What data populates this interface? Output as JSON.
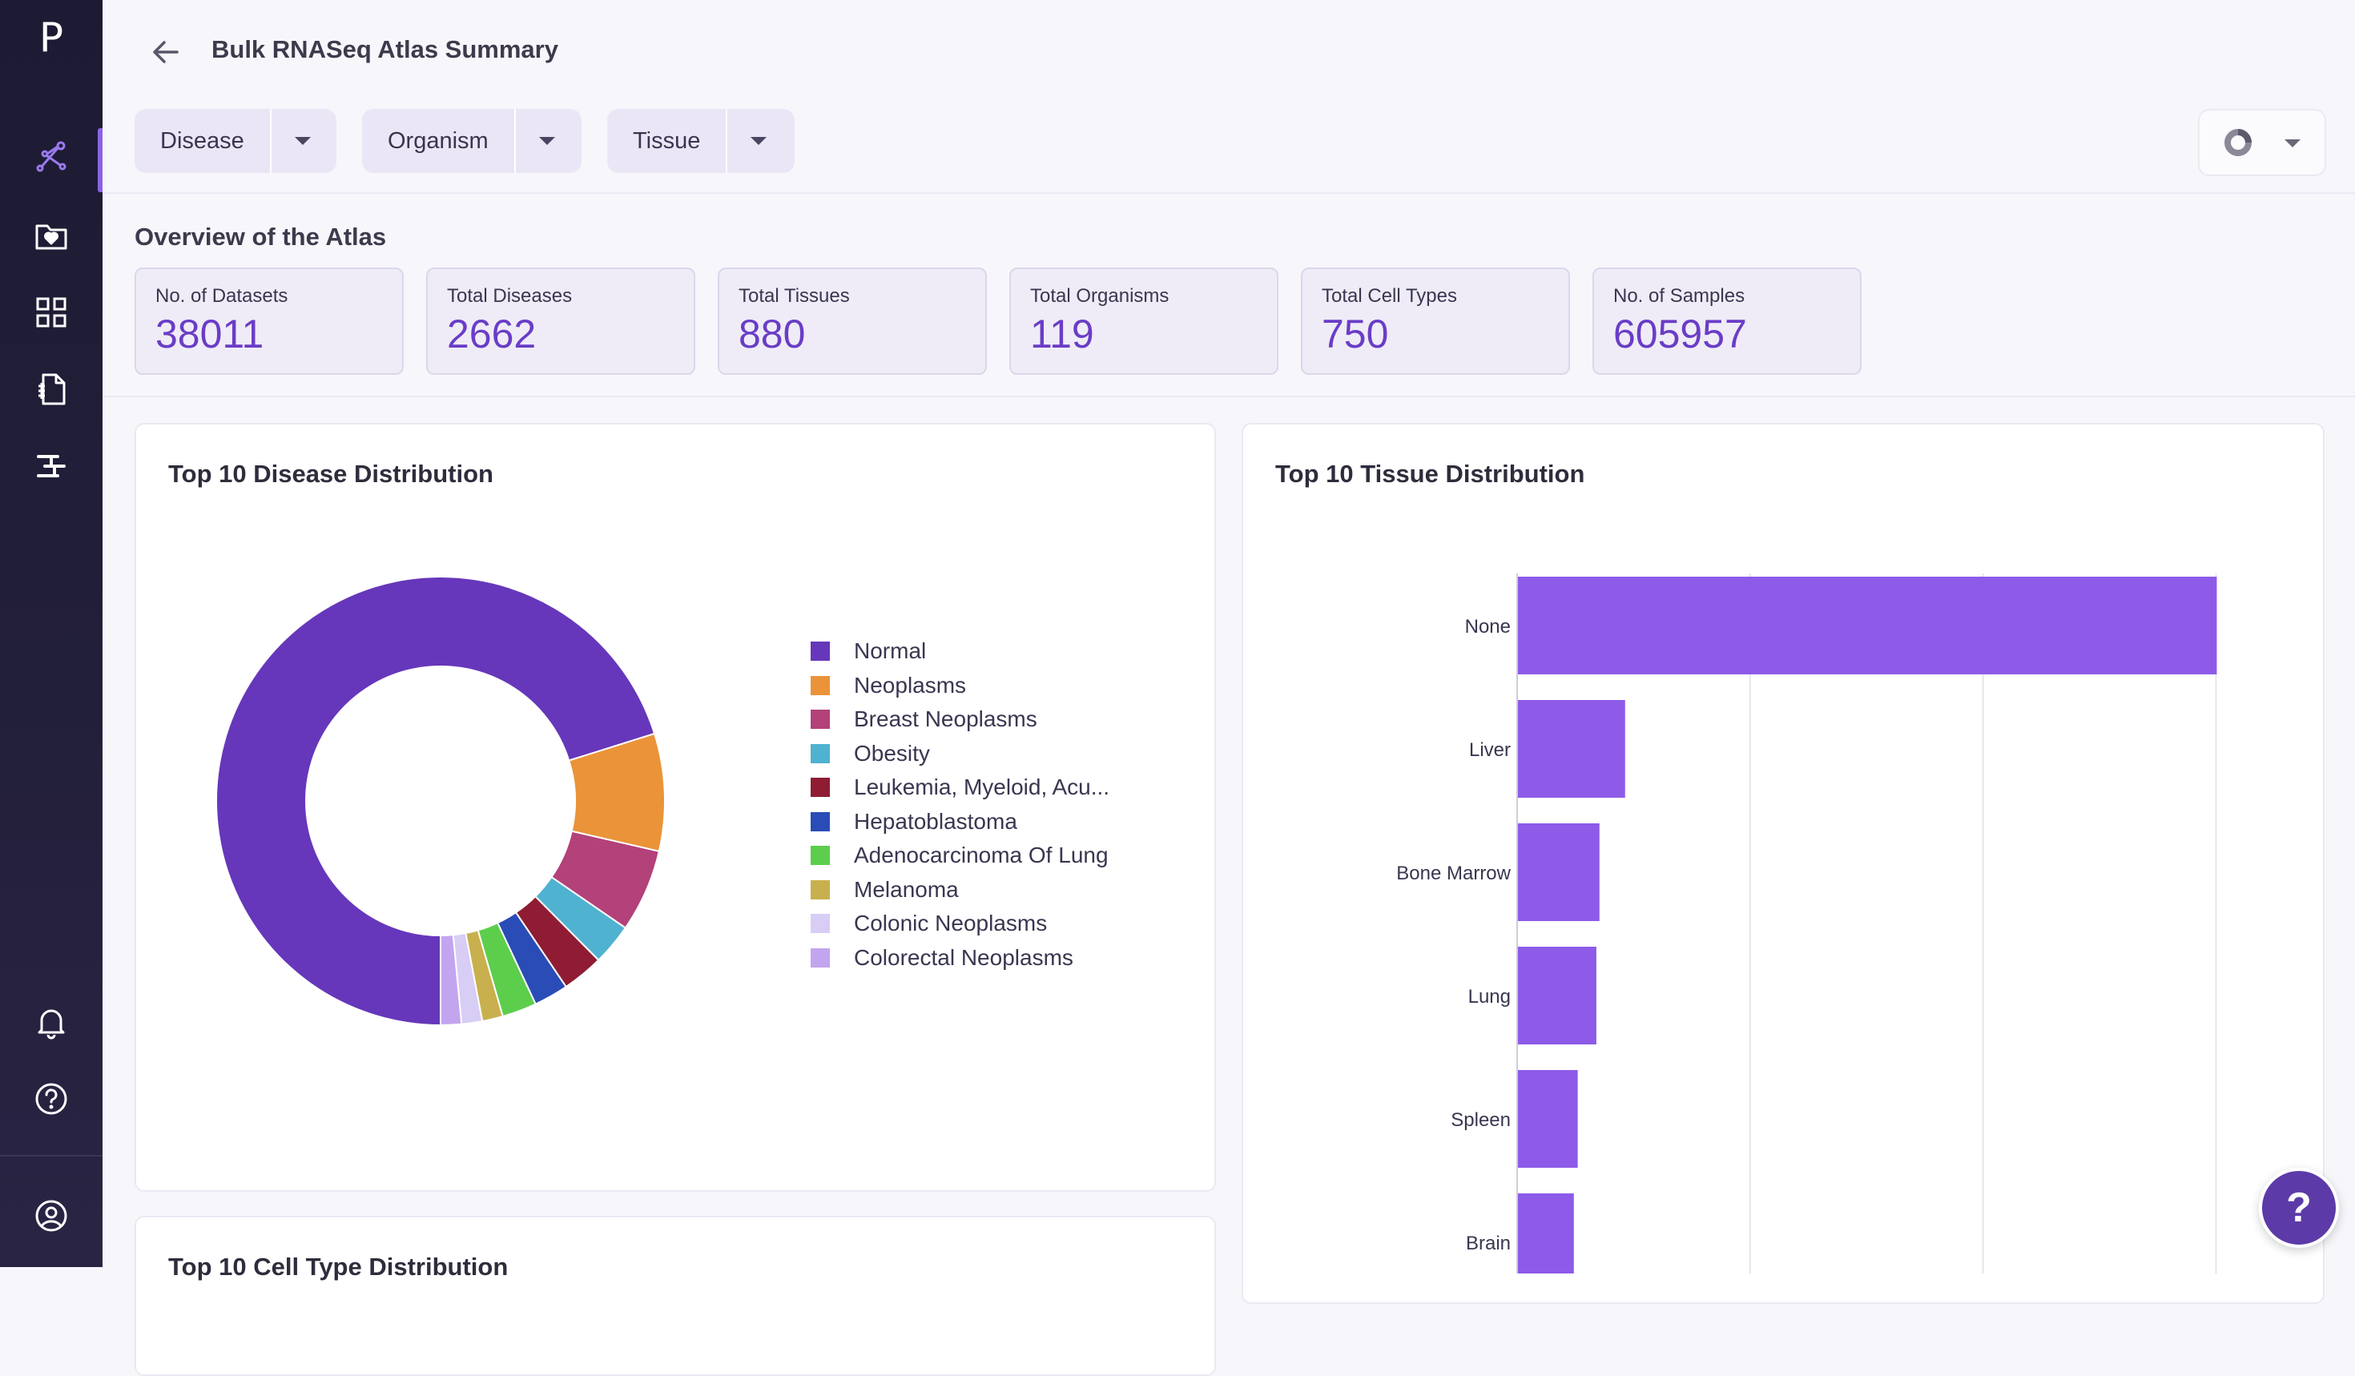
{
  "app": {
    "logo_letter": "P"
  },
  "header": {
    "title": "Bulk RNASeq Atlas Summary",
    "back_icon": "arrow-left-icon"
  },
  "filters": [
    {
      "label": "Disease"
    },
    {
      "label": "Organism"
    },
    {
      "label": "Tissue"
    }
  ],
  "sidebar": {
    "items": [
      {
        "icon": "network-icon",
        "active": true
      },
      {
        "icon": "heart-folder-icon",
        "active": false
      },
      {
        "icon": "grid-icon",
        "active": false
      },
      {
        "icon": "document-code-icon",
        "active": false
      },
      {
        "icon": "pipeline-icon",
        "active": false
      }
    ],
    "bottom": [
      "bell-icon",
      "help-circle-icon",
      "user-circle-icon"
    ]
  },
  "overview": {
    "title": "Overview of the Atlas",
    "stats": [
      {
        "label": "No. of Datasets",
        "value": "38011"
      },
      {
        "label": "Total Diseases",
        "value": "2662"
      },
      {
        "label": "Total Tissues",
        "value": "880"
      },
      {
        "label": "Total Organisms",
        "value": "119"
      },
      {
        "label": "Total Cell Types",
        "value": "750"
      },
      {
        "label": "No. of Samples",
        "value": "605957"
      }
    ]
  },
  "cards": {
    "disease_title": "Top 10 Disease Distribution",
    "tissue_title": "Top 10 Tissue Distribution",
    "celltype_title": "Top 10 Cell Type Distribution"
  },
  "colors": {
    "accent": "#6a3dc6",
    "bar": "#8d5be8",
    "sidebar": "#1d1b33"
  },
  "chart_data": [
    {
      "type": "pie",
      "title": "Top 10 Disease Distribution",
      "legend_position": "right",
      "categories": [
        "Normal",
        "Neoplasms",
        "Breast Neoplasms",
        "Obesity",
        "Leukemia, Myeloid, Acu...",
        "Hepatoblastoma",
        "Adenocarcinoma Of Lung",
        "Melanoma",
        "Colonic Neoplasms",
        "Colorectal Neoplasms"
      ],
      "values": [
        70.5,
        8.5,
        6.0,
        3.0,
        3.0,
        2.5,
        2.5,
        1.5,
        1.5,
        1.5
      ],
      "colors": [
        "#6637ba",
        "#ea9339",
        "#b3417a",
        "#4fb2d0",
        "#8f1c33",
        "#2a4cb6",
        "#5cce4c",
        "#c8b04e",
        "#d8cdf5",
        "#c3a5ef"
      ]
    },
    {
      "type": "bar",
      "orientation": "horizontal",
      "title": "Top 10 Tissue Distribution",
      "categories": [
        "None",
        "Liver",
        "Bone Marrow",
        "Lung",
        "Spleen",
        "Brain"
      ],
      "values": [
        9000,
        1380,
        1050,
        1010,
        770,
        720
      ],
      "xlim": [
        0,
        9800
      ],
      "grid": true
    }
  ]
}
